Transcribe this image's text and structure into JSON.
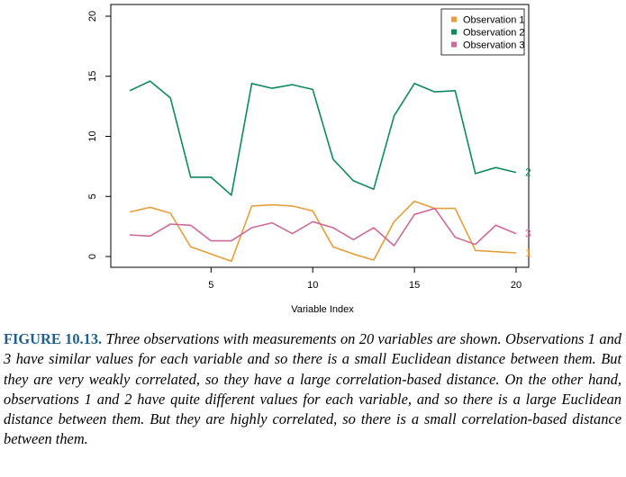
{
  "chart_data": {
    "type": "line",
    "title": "",
    "xlabel": "Variable Index",
    "ylabel": "",
    "xlim": [
      1,
      20
    ],
    "ylim": [
      0,
      20
    ],
    "x_ticks": [
      5,
      10,
      15,
      20
    ],
    "y_ticks": [
      0,
      5,
      10,
      15,
      20
    ],
    "grid": false,
    "legend_position": "top-right",
    "x": [
      1,
      2,
      3,
      4,
      5,
      6,
      7,
      8,
      9,
      10,
      11,
      12,
      13,
      14,
      15,
      16,
      17,
      18,
      19,
      20
    ],
    "series": [
      {
        "name": "Observation 1",
        "label": "1",
        "color": "#e69f3c",
        "values": [
          3.7,
          4.1,
          3.6,
          0.8,
          0.2,
          -0.4,
          4.2,
          4.3,
          4.2,
          3.8,
          0.8,
          0.2,
          -0.3,
          2.9,
          4.6,
          4.0,
          4.0,
          0.5,
          0.4,
          0.3
        ]
      },
      {
        "name": "Observation 2",
        "label": "2",
        "color": "#0f8a5f",
        "values": [
          13.8,
          14.6,
          13.2,
          6.6,
          6.6,
          5.1,
          14.4,
          14.0,
          14.3,
          13.9,
          8.1,
          6.3,
          5.6,
          11.7,
          14.4,
          13.7,
          13.8,
          6.9,
          7.4,
          7.0
        ]
      },
      {
        "name": "Observation 3",
        "label": "3",
        "color": "#cc6a9a",
        "values": [
          1.8,
          1.7,
          2.7,
          2.6,
          1.3,
          1.3,
          2.4,
          2.8,
          1.9,
          2.9,
          2.4,
          1.4,
          2.4,
          0.9,
          3.5,
          4.0,
          1.6,
          1.0,
          2.6,
          1.9
        ]
      }
    ]
  },
  "caption": {
    "label": "FIGURE 10.13.",
    "text": "Three observations with measurements on 20 variables are shown. Observations 1 and 3 have similar values for each variable and so there is a small Euclidean distance between them. But they are very weakly correlated, so they have a large correlation-based distance. On the other hand, observations 1 and 2 have quite different values for each variable, and so there is a large Euclidean distance between them. But they are highly correlated, so there is a small correlation-based distance between them."
  }
}
